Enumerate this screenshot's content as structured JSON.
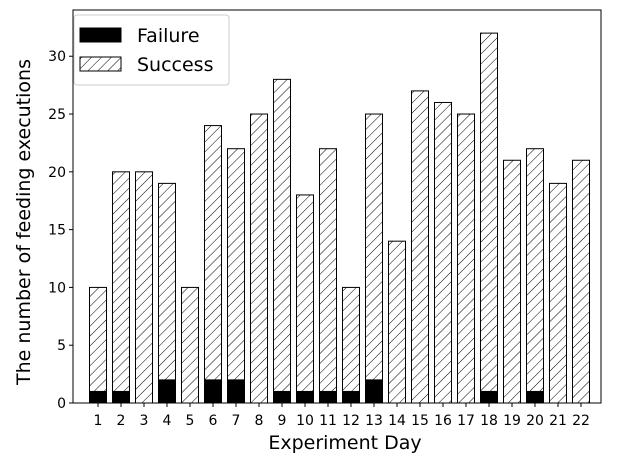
{
  "chart_data": {
    "type": "bar",
    "stacked": true,
    "xlabel": "Experiment Day",
    "ylabel": "The number of feeding executions",
    "ylim": [
      0,
      34
    ],
    "yticks": [
      0,
      5,
      10,
      15,
      20,
      25,
      30
    ],
    "grid": false,
    "legend_position": "top-left",
    "categories": [
      "1",
      "2",
      "3",
      "4",
      "5",
      "6",
      "7",
      "8",
      "9",
      "10",
      "11",
      "12",
      "13",
      "14",
      "15",
      "16",
      "17",
      "18",
      "19",
      "20",
      "21",
      "22"
    ],
    "series": [
      {
        "name": "Failure",
        "fill": "solid",
        "color": "#000000",
        "values": [
          1,
          1,
          0,
          2,
          0,
          2,
          2,
          0,
          1,
          1,
          1,
          1,
          2,
          0,
          0,
          0,
          0,
          1,
          0,
          1,
          0,
          0
        ]
      },
      {
        "name": "Success",
        "fill": "hatch",
        "color": "#000000",
        "values": [
          9,
          19,
          20,
          17,
          10,
          22,
          20,
          25,
          27,
          17,
          21,
          9,
          23,
          14,
          27,
          26,
          25,
          31,
          21,
          21,
          19,
          21
        ]
      }
    ]
  }
}
